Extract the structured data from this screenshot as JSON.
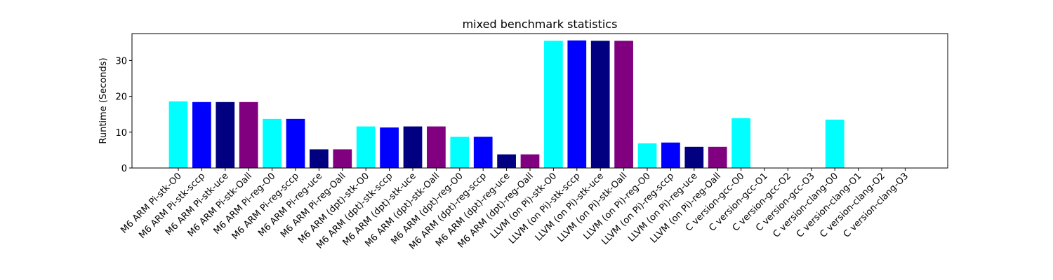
{
  "chart_data": {
    "type": "bar",
    "title": "mixed benchmark statistics",
    "xlabel": "",
    "ylabel": "Runtime (Seconds)",
    "ylim": [
      0,
      37.5
    ],
    "yticks": [
      0,
      10,
      20,
      30
    ],
    "grid": false,
    "categories": [
      "M6 ARM Pi-stk-O0",
      "M6 ARM Pi-stk-sccp",
      "M6 ARM Pi-stk-uce",
      "M6 ARM Pi-stk-Oall",
      "M6 ARM Pi-reg-O0",
      "M6 ARM Pi-reg-sccp",
      "M6 ARM Pi-reg-uce",
      "M6 ARM Pi-reg-Oall",
      "M6 ARM (dpt)-stk-O0",
      "M6 ARM (dpt)-stk-sccp",
      "M6 ARM (dpt)-stk-uce",
      "M6 ARM (dpt)-stk-Oall",
      "M6 ARM (dpt)-reg-O0",
      "M6 ARM (dpt)-reg-sccp",
      "M6 ARM (dpt)-reg-uce",
      "M6 ARM (dpt)-reg-Oall",
      "LLVM (on Pi)-stk-O0",
      "LLVM (on Pi)-stk-sccp",
      "LLVM (on Pi)-stk-uce",
      "LLVM (on Pi)-stk-Oall",
      "LLVM (on Pi)-reg-O0",
      "LLVM (on Pi)-reg-sccp",
      "LLVM (on Pi)-reg-uce",
      "LLVM (on Pi)-reg-Oall",
      "C version-gcc-O0",
      "C version-gcc-O1",
      "C version-gcc-O2",
      "C version-gcc-O3",
      "C version-clang-O0",
      "C version-clang-O1",
      "C version-clang-O2",
      "C version-clang-O3"
    ],
    "values": [
      18.6,
      18.4,
      18.4,
      18.4,
      13.7,
      13.7,
      5.2,
      5.2,
      11.6,
      11.3,
      11.6,
      11.6,
      8.7,
      8.7,
      3.8,
      3.8,
      35.5,
      35.6,
      35.5,
      35.5,
      6.9,
      7.1,
      5.9,
      5.9,
      13.9,
      0,
      0,
      0,
      13.5,
      0,
      0,
      0
    ],
    "colors": [
      "#00ffff",
      "#0000ff",
      "#000080",
      "#800080",
      "#00ffff",
      "#0000ff",
      "#000080",
      "#800080",
      "#00ffff",
      "#0000ff",
      "#000080",
      "#800080",
      "#00ffff",
      "#0000ff",
      "#000080",
      "#800080",
      "#00ffff",
      "#0000ff",
      "#000080",
      "#800080",
      "#00ffff",
      "#0000ff",
      "#000080",
      "#800080",
      "#00ffff",
      "#0000ff",
      "#000080",
      "#800080",
      "#00ffff",
      "#0000ff",
      "#000080",
      "#800080"
    ]
  }
}
